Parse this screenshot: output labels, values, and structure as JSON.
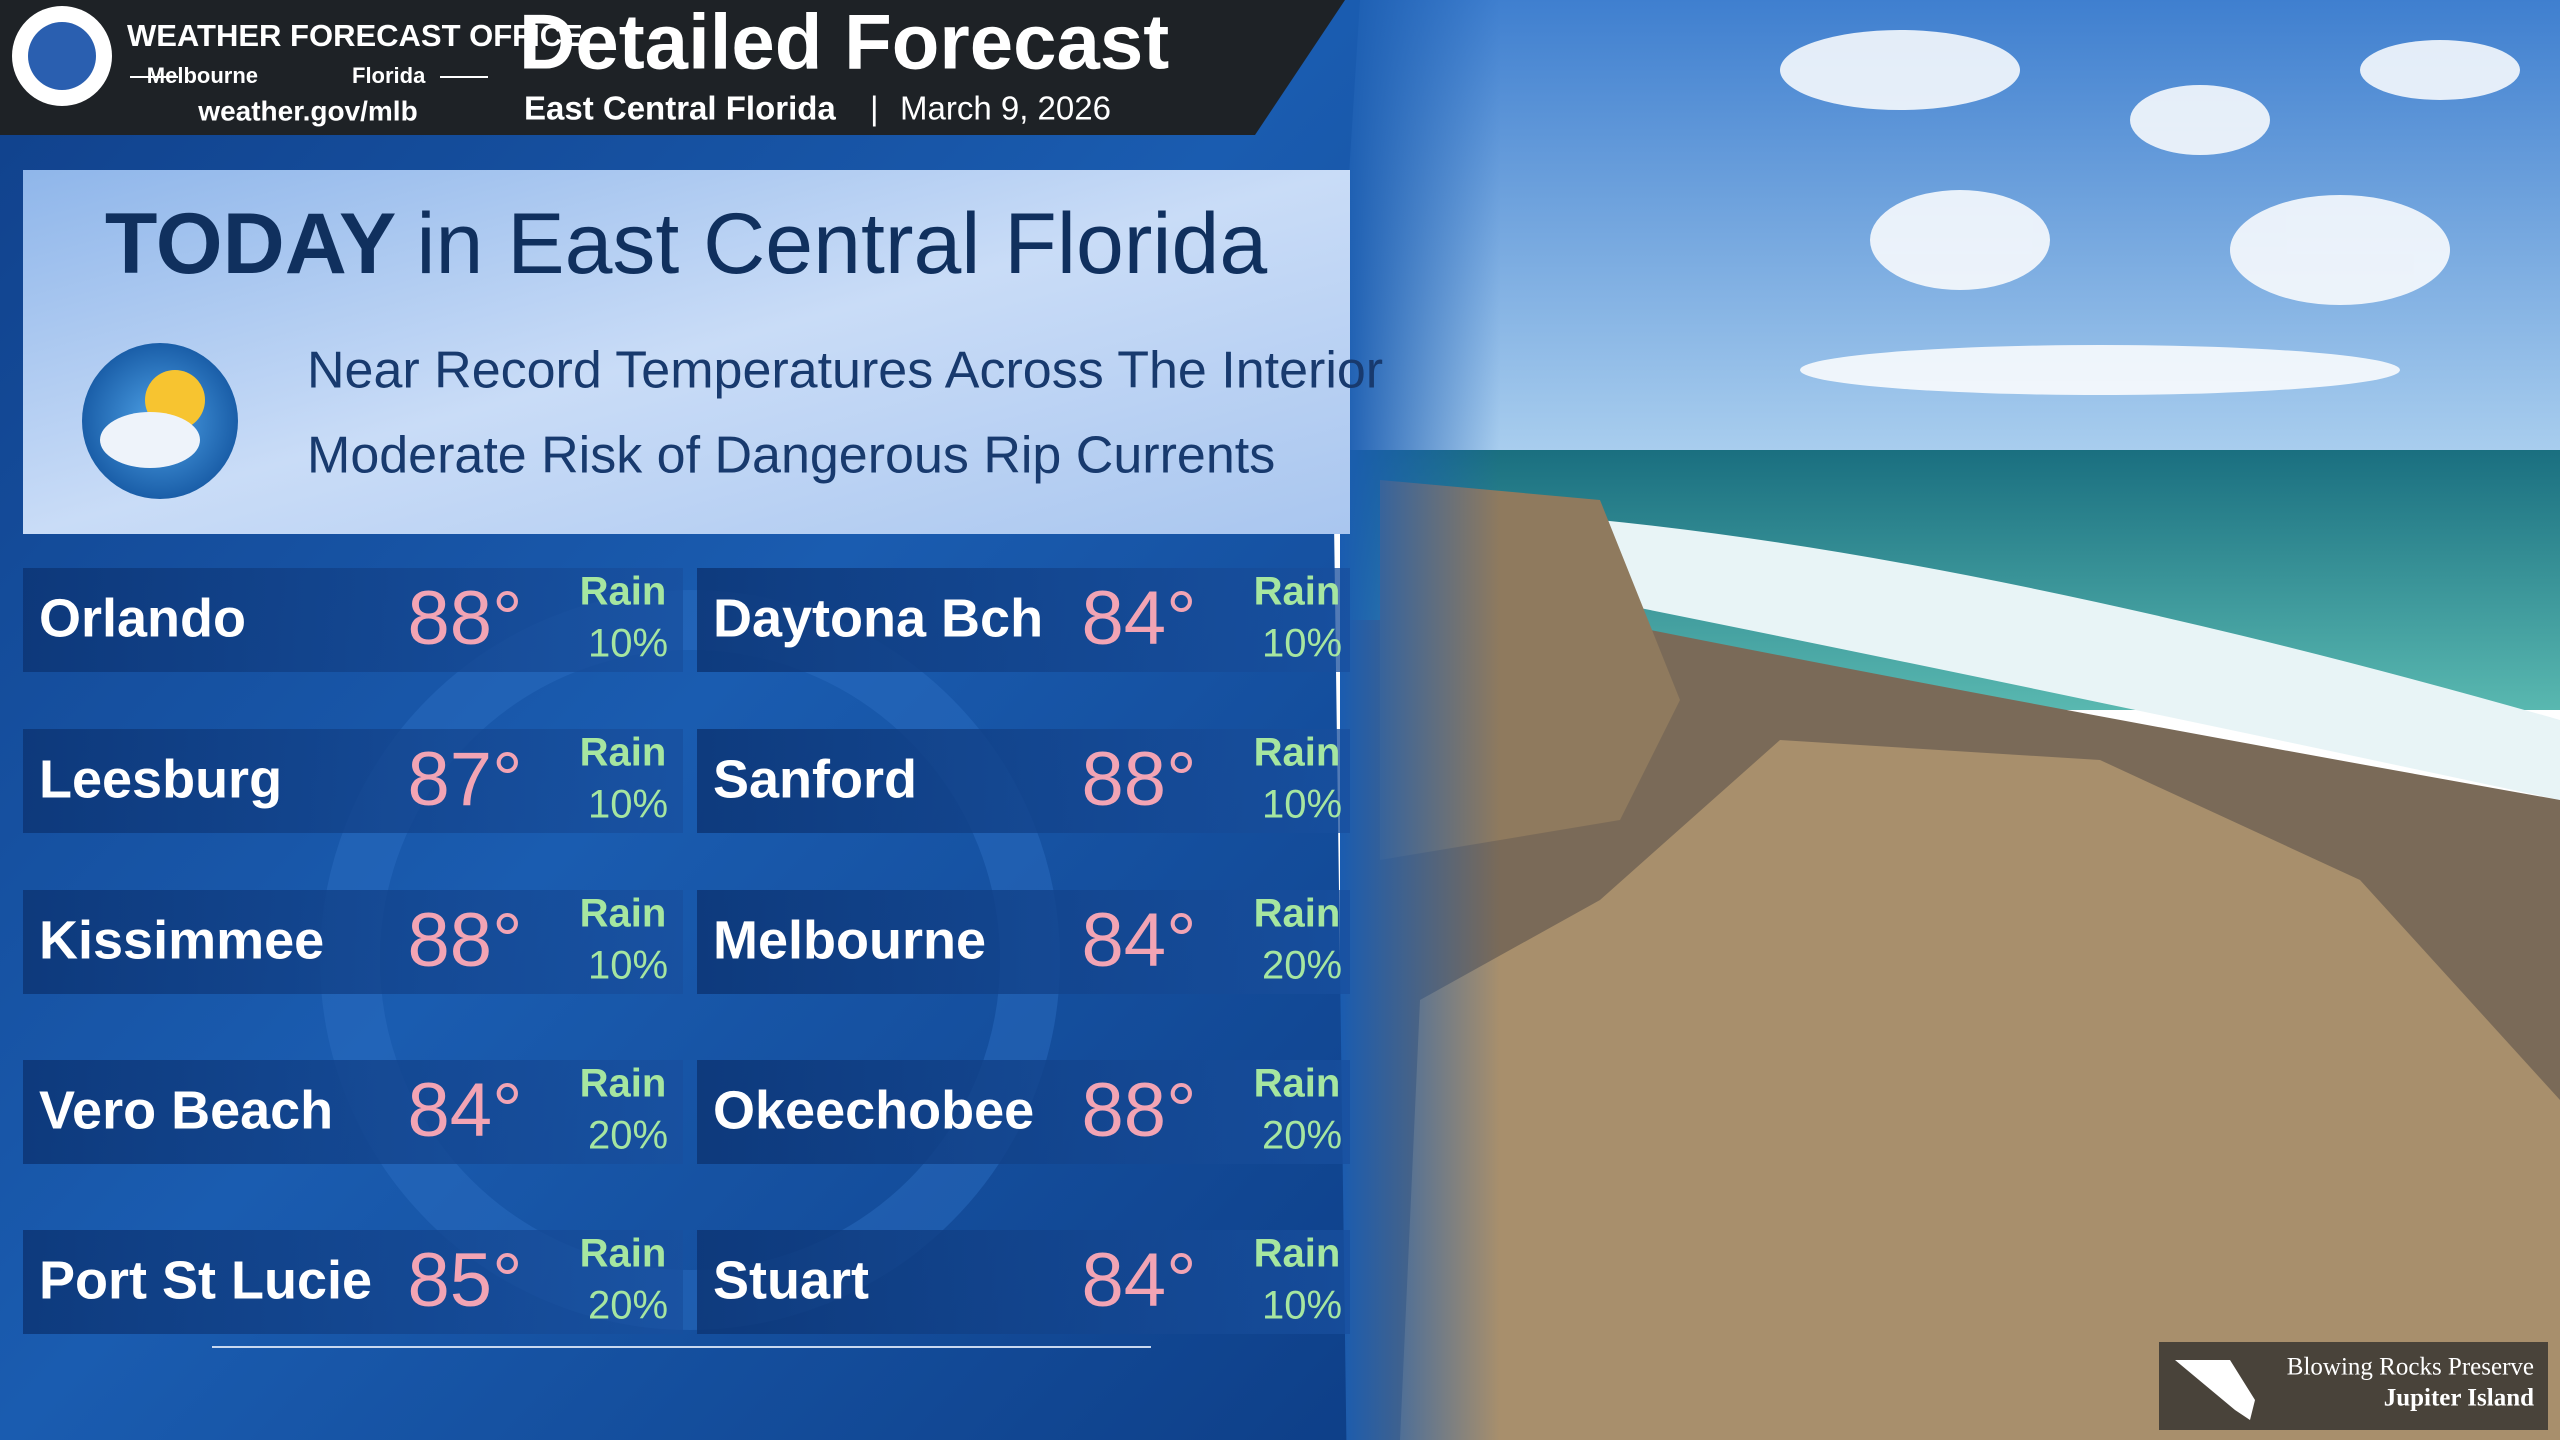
{
  "header": {
    "office": "WEATHER FORECAST OFFICE",
    "city": "Melbourne",
    "state": "Florida",
    "url": "weather.gov/mlb",
    "title": "Detailed Forecast",
    "region": "East Central Florida",
    "date": "March 9, 2026"
  },
  "today": {
    "heading_bold": "TODAY",
    "heading_rest": "in East Central Florida",
    "lines": [
      "Near Record Temperatures Across The Interior",
      "Moderate Risk of Dangerous Rip Currents"
    ]
  },
  "cities": [
    {
      "name": "Orlando",
      "temp": "88°",
      "rain_label": "Rain",
      "rain": "10%"
    },
    {
      "name": "Daytona Bch",
      "temp": "84°",
      "rain_label": "Rain",
      "rain": "10%"
    },
    {
      "name": "Leesburg",
      "temp": "87°",
      "rain_label": "Rain",
      "rain": "10%"
    },
    {
      "name": "Sanford",
      "temp": "88°",
      "rain_label": "Rain",
      "rain": "10%"
    },
    {
      "name": "Kissimmee",
      "temp": "88°",
      "rain_label": "Rain",
      "rain": "10%"
    },
    {
      "name": "Melbourne",
      "temp": "84°",
      "rain_label": "Rain",
      "rain": "20%"
    },
    {
      "name": "Vero Beach",
      "temp": "84°",
      "rain_label": "Rain",
      "rain": "20%"
    },
    {
      "name": "Okeechobee",
      "temp": "88°",
      "rain_label": "Rain",
      "rain": "20%"
    },
    {
      "name": "Port St Lucie",
      "temp": "85°",
      "rain_label": "Rain",
      "rain": "20%"
    },
    {
      "name": "Stuart",
      "temp": "84°",
      "rain_label": "Rain",
      "rain": "10%"
    }
  ],
  "photo": {
    "caption_1": "Blowing Rocks Preserve",
    "caption_2": "Jupiter Island"
  }
}
